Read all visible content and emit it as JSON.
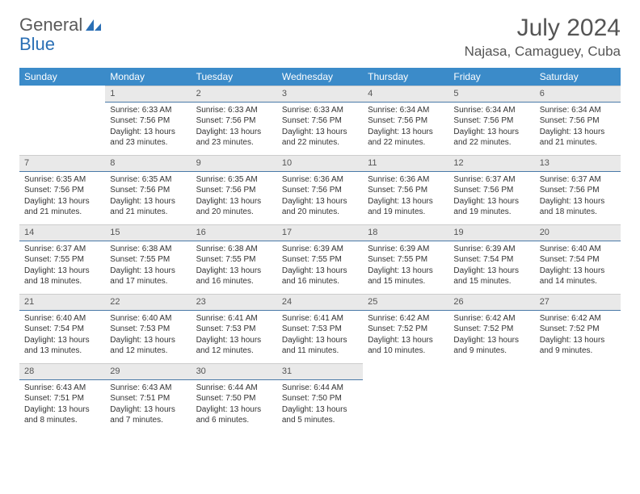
{
  "logo": {
    "word1": "General",
    "word2": "Blue"
  },
  "title": "July 2024",
  "location": "Najasa, Camaguey, Cuba",
  "colors": {
    "header_bg": "#3b8bc9",
    "header_text": "#ffffff",
    "daynum_bg": "#e9e9e9",
    "daynum_border": "#4a7aa8",
    "text": "#333333",
    "logo_gray": "#5a5a5a",
    "logo_blue": "#2a6fb5",
    "background": "#ffffff"
  },
  "fonts": {
    "title_size_pt": 22,
    "location_size_pt": 13,
    "header_size_pt": 9,
    "cell_size_pt": 7.5
  },
  "weekdays": [
    "Sunday",
    "Monday",
    "Tuesday",
    "Wednesday",
    "Thursday",
    "Friday",
    "Saturday"
  ],
  "weeks": [
    [
      {
        "blank": true
      },
      {
        "n": "1",
        "sunrise": "Sunrise: 6:33 AM",
        "sunset": "Sunset: 7:56 PM",
        "daylight": "Daylight: 13 hours and 23 minutes."
      },
      {
        "n": "2",
        "sunrise": "Sunrise: 6:33 AM",
        "sunset": "Sunset: 7:56 PM",
        "daylight": "Daylight: 13 hours and 23 minutes."
      },
      {
        "n": "3",
        "sunrise": "Sunrise: 6:33 AM",
        "sunset": "Sunset: 7:56 PM",
        "daylight": "Daylight: 13 hours and 22 minutes."
      },
      {
        "n": "4",
        "sunrise": "Sunrise: 6:34 AM",
        "sunset": "Sunset: 7:56 PM",
        "daylight": "Daylight: 13 hours and 22 minutes."
      },
      {
        "n": "5",
        "sunrise": "Sunrise: 6:34 AM",
        "sunset": "Sunset: 7:56 PM",
        "daylight": "Daylight: 13 hours and 22 minutes."
      },
      {
        "n": "6",
        "sunrise": "Sunrise: 6:34 AM",
        "sunset": "Sunset: 7:56 PM",
        "daylight": "Daylight: 13 hours and 21 minutes."
      }
    ],
    [
      {
        "n": "7",
        "sunrise": "Sunrise: 6:35 AM",
        "sunset": "Sunset: 7:56 PM",
        "daylight": "Daylight: 13 hours and 21 minutes."
      },
      {
        "n": "8",
        "sunrise": "Sunrise: 6:35 AM",
        "sunset": "Sunset: 7:56 PM",
        "daylight": "Daylight: 13 hours and 21 minutes."
      },
      {
        "n": "9",
        "sunrise": "Sunrise: 6:35 AM",
        "sunset": "Sunset: 7:56 PM",
        "daylight": "Daylight: 13 hours and 20 minutes."
      },
      {
        "n": "10",
        "sunrise": "Sunrise: 6:36 AM",
        "sunset": "Sunset: 7:56 PM",
        "daylight": "Daylight: 13 hours and 20 minutes."
      },
      {
        "n": "11",
        "sunrise": "Sunrise: 6:36 AM",
        "sunset": "Sunset: 7:56 PM",
        "daylight": "Daylight: 13 hours and 19 minutes."
      },
      {
        "n": "12",
        "sunrise": "Sunrise: 6:37 AM",
        "sunset": "Sunset: 7:56 PM",
        "daylight": "Daylight: 13 hours and 19 minutes."
      },
      {
        "n": "13",
        "sunrise": "Sunrise: 6:37 AM",
        "sunset": "Sunset: 7:56 PM",
        "daylight": "Daylight: 13 hours and 18 minutes."
      }
    ],
    [
      {
        "n": "14",
        "sunrise": "Sunrise: 6:37 AM",
        "sunset": "Sunset: 7:55 PM",
        "daylight": "Daylight: 13 hours and 18 minutes."
      },
      {
        "n": "15",
        "sunrise": "Sunrise: 6:38 AM",
        "sunset": "Sunset: 7:55 PM",
        "daylight": "Daylight: 13 hours and 17 minutes."
      },
      {
        "n": "16",
        "sunrise": "Sunrise: 6:38 AM",
        "sunset": "Sunset: 7:55 PM",
        "daylight": "Daylight: 13 hours and 16 minutes."
      },
      {
        "n": "17",
        "sunrise": "Sunrise: 6:39 AM",
        "sunset": "Sunset: 7:55 PM",
        "daylight": "Daylight: 13 hours and 16 minutes."
      },
      {
        "n": "18",
        "sunrise": "Sunrise: 6:39 AM",
        "sunset": "Sunset: 7:55 PM",
        "daylight": "Daylight: 13 hours and 15 minutes."
      },
      {
        "n": "19",
        "sunrise": "Sunrise: 6:39 AM",
        "sunset": "Sunset: 7:54 PM",
        "daylight": "Daylight: 13 hours and 15 minutes."
      },
      {
        "n": "20",
        "sunrise": "Sunrise: 6:40 AM",
        "sunset": "Sunset: 7:54 PM",
        "daylight": "Daylight: 13 hours and 14 minutes."
      }
    ],
    [
      {
        "n": "21",
        "sunrise": "Sunrise: 6:40 AM",
        "sunset": "Sunset: 7:54 PM",
        "daylight": "Daylight: 13 hours and 13 minutes."
      },
      {
        "n": "22",
        "sunrise": "Sunrise: 6:40 AM",
        "sunset": "Sunset: 7:53 PM",
        "daylight": "Daylight: 13 hours and 12 minutes."
      },
      {
        "n": "23",
        "sunrise": "Sunrise: 6:41 AM",
        "sunset": "Sunset: 7:53 PM",
        "daylight": "Daylight: 13 hours and 12 minutes."
      },
      {
        "n": "24",
        "sunrise": "Sunrise: 6:41 AM",
        "sunset": "Sunset: 7:53 PM",
        "daylight": "Daylight: 13 hours and 11 minutes."
      },
      {
        "n": "25",
        "sunrise": "Sunrise: 6:42 AM",
        "sunset": "Sunset: 7:52 PM",
        "daylight": "Daylight: 13 hours and 10 minutes."
      },
      {
        "n": "26",
        "sunrise": "Sunrise: 6:42 AM",
        "sunset": "Sunset: 7:52 PM",
        "daylight": "Daylight: 13 hours and 9 minutes."
      },
      {
        "n": "27",
        "sunrise": "Sunrise: 6:42 AM",
        "sunset": "Sunset: 7:52 PM",
        "daylight": "Daylight: 13 hours and 9 minutes."
      }
    ],
    [
      {
        "n": "28",
        "sunrise": "Sunrise: 6:43 AM",
        "sunset": "Sunset: 7:51 PM",
        "daylight": "Daylight: 13 hours and 8 minutes."
      },
      {
        "n": "29",
        "sunrise": "Sunrise: 6:43 AM",
        "sunset": "Sunset: 7:51 PM",
        "daylight": "Daylight: 13 hours and 7 minutes."
      },
      {
        "n": "30",
        "sunrise": "Sunrise: 6:44 AM",
        "sunset": "Sunset: 7:50 PM",
        "daylight": "Daylight: 13 hours and 6 minutes."
      },
      {
        "n": "31",
        "sunrise": "Sunrise: 6:44 AM",
        "sunset": "Sunset: 7:50 PM",
        "daylight": "Daylight: 13 hours and 5 minutes."
      },
      {
        "blank": true
      },
      {
        "blank": true
      },
      {
        "blank": true
      }
    ]
  ]
}
